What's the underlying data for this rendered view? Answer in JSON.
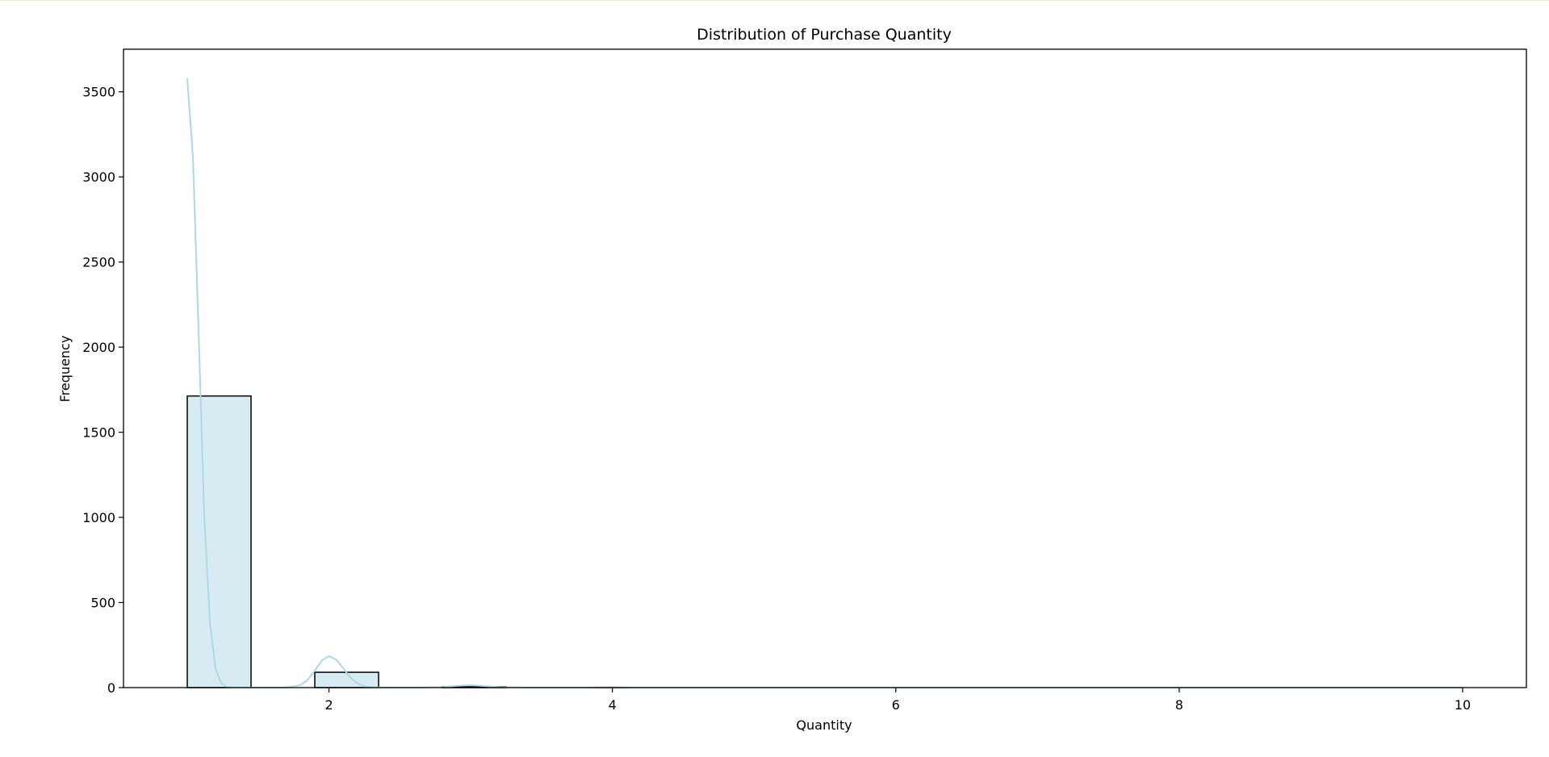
{
  "chart_data": {
    "type": "bar",
    "title": "Distribution of Purchase Quantity",
    "xlabel": "Quantity",
    "ylabel": "Frequency",
    "xlim": [
      0.55,
      10.45
    ],
    "ylim": [
      0,
      3750
    ],
    "xticks": [
      2,
      4,
      6,
      8,
      10
    ],
    "yticks": [
      0,
      500,
      1000,
      1500,
      2000,
      2500,
      3000,
      3500
    ],
    "grid": false,
    "bar_color": "#add8e6",
    "bar_fill_opacity": 0.5,
    "bar_edge_color": "#000000",
    "kde_color": "#add8e6",
    "bins": [
      {
        "x0": 1.0,
        "x1": 1.45,
        "count": 1713
      },
      {
        "x0": 1.9,
        "x1": 2.35,
        "count": 90
      },
      {
        "x0": 2.8,
        "x1": 3.25,
        "count": 5
      },
      {
        "x0": 3.7,
        "x1": 4.15,
        "count": 1
      },
      {
        "x0": 4.6,
        "x1": 5.05,
        "count": 0
      },
      {
        "x0": 5.5,
        "x1": 5.95,
        "count": 0
      },
      {
        "x0": 6.4,
        "x1": 6.85,
        "count": 0
      },
      {
        "x0": 7.3,
        "x1": 7.75,
        "count": 0
      },
      {
        "x0": 8.2,
        "x1": 8.65,
        "count": 0
      },
      {
        "x0": 9.1,
        "x1": 9.55,
        "count": 0
      }
    ],
    "kde": {
      "x": [
        1.0,
        1.04,
        1.08,
        1.12,
        1.16,
        1.2,
        1.24,
        1.28,
        1.32,
        1.36,
        1.4,
        1.5,
        1.6,
        1.7,
        1.8,
        1.85,
        1.9,
        1.95,
        2.0,
        2.05,
        2.1,
        2.15,
        2.2,
        2.25,
        2.3,
        2.4,
        2.6,
        2.8,
        2.9,
        3.0,
        3.1,
        3.2,
        3.4,
        3.8,
        4.0,
        4.2,
        5.0,
        6.0,
        7.0,
        8.0,
        9.0,
        10.0
      ],
      "y": [
        3580,
        3120,
        2100,
        1000,
        380,
        110,
        25,
        4,
        0,
        0,
        0,
        0,
        0,
        0,
        15,
        45,
        100,
        160,
        185,
        165,
        115,
        60,
        25,
        8,
        2,
        0,
        0,
        3,
        10,
        14,
        9,
        3,
        0,
        0,
        3,
        0,
        0,
        0,
        0,
        0,
        0,
        0
      ]
    }
  }
}
